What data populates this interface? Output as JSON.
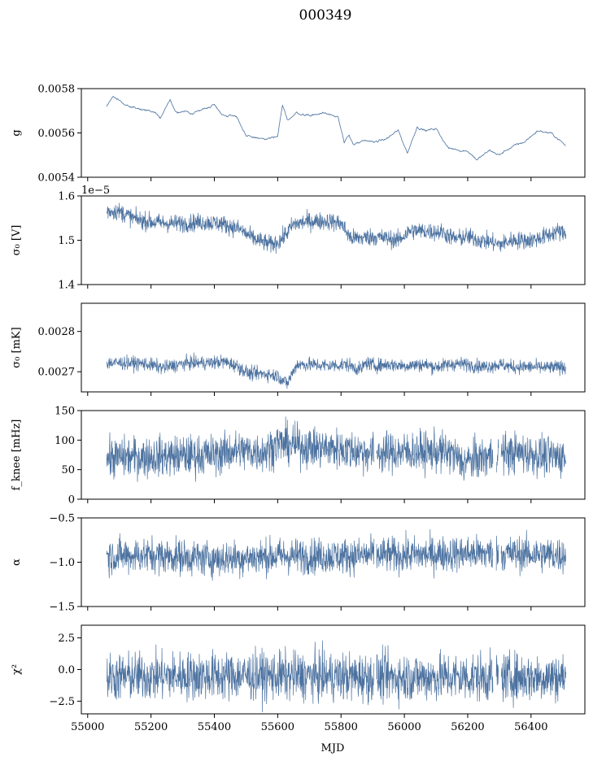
{
  "title": "000349",
  "series_color": "#4c72a0",
  "xlabel": "MJD",
  "x_ticks": [
    "55000",
    "55200",
    "55400",
    "55600",
    "55800",
    "56000",
    "56200",
    "56400"
  ],
  "chart_data": [
    {
      "type": "line",
      "name": "g",
      "ylabel": "g",
      "ylim": [
        0.0054,
        0.0058
      ],
      "y_ticks": [
        {
          "v": 0.0054,
          "label": "0.0054"
        },
        {
          "v": 0.0056,
          "label": "0.0056"
        },
        {
          "v": 0.0058,
          "label": "0.0058"
        }
      ],
      "x": [
        55060,
        55080,
        55100,
        55130,
        55160,
        55200,
        55230,
        55260,
        55280,
        55330,
        55370,
        55400,
        55430,
        55470,
        55500,
        55530,
        55560,
        55600,
        55615,
        55630,
        55660,
        55700,
        55750,
        55790,
        55810,
        55825,
        55840,
        55870,
        55900,
        55940,
        55980,
        56010,
        56040,
        56070,
        56100,
        56140,
        56200,
        56230,
        56270,
        56300,
        56330,
        56380,
        56420,
        56460,
        56490,
        56510
      ],
      "values": [
        0.00572,
        0.00577,
        0.00575,
        0.00572,
        0.00571,
        0.0057,
        0.00567,
        0.00575,
        0.00569,
        0.00569,
        0.00571,
        0.00573,
        0.00568,
        0.00568,
        0.00558,
        0.00558,
        0.00557,
        0.00558,
        0.00572,
        0.00566,
        0.00569,
        0.00568,
        0.00569,
        0.00568,
        0.00555,
        0.00559,
        0.00555,
        0.00556,
        0.00556,
        0.00557,
        0.00561,
        0.00551,
        0.00563,
        0.00561,
        0.00562,
        0.00553,
        0.00552,
        0.00548,
        0.00552,
        0.0055,
        0.00553,
        0.00556,
        0.00561,
        0.0056,
        0.00557,
        0.00554
      ],
      "noise": 2.5e-06
    },
    {
      "type": "line",
      "name": "sigma0-V",
      "ylabel": "σ₀ [V]",
      "offset_text": "1e−5",
      "ylim": [
        1.4,
        1.6
      ],
      "y_ticks": [
        {
          "v": 1.4,
          "label": "1.4"
        },
        {
          "v": 1.5,
          "label": "1.5"
        },
        {
          "v": 1.6,
          "label": "1.6"
        }
      ],
      "x": [
        55060,
        55100,
        55150,
        55200,
        55260,
        55300,
        55360,
        55420,
        55480,
        55520,
        55550,
        55580,
        55610,
        55650,
        55700,
        55760,
        55800,
        55830,
        55860,
        55900,
        55940,
        55980,
        56020,
        56070,
        56120,
        56160,
        56200,
        56240,
        56280,
        56300,
        56340,
        56400,
        56450,
        56480,
        56510
      ],
      "values": [
        1.566,
        1.565,
        1.548,
        1.541,
        1.538,
        1.538,
        1.541,
        1.538,
        1.525,
        1.505,
        1.497,
        1.49,
        1.5,
        1.536,
        1.543,
        1.543,
        1.538,
        1.505,
        1.505,
        1.508,
        1.505,
        1.5,
        1.522,
        1.52,
        1.518,
        1.503,
        1.508,
        1.5,
        1.495,
        1.49,
        1.5,
        1.5,
        1.51,
        1.52,
        1.515
      ],
      "noise": 0.01,
      "gaps": []
    },
    {
      "type": "line",
      "name": "sigma0-mK",
      "ylabel": "σ₀ [mK]",
      "ylim": [
        0.00265,
        0.00287
      ],
      "y_ticks": [
        {
          "v": 0.0027,
          "label": "0.0027"
        },
        {
          "v": 0.0028,
          "label": "0.0028"
        }
      ],
      "x": [
        55060,
        55120,
        55180,
        55240,
        55280,
        55320,
        55380,
        55430,
        55470,
        55510,
        55560,
        55600,
        55630,
        55660,
        55700,
        55760,
        55820,
        55860,
        55880,
        55910,
        55950,
        56000,
        56060,
        56100,
        56160,
        56200,
        56250,
        56300,
        56340,
        56400,
        56450,
        56510
      ],
      "values": [
        0.002722,
        0.002722,
        0.00272,
        0.00271,
        0.002717,
        0.002722,
        0.002722,
        0.002725,
        0.002715,
        0.002695,
        0.002695,
        0.00269,
        0.00267,
        0.002718,
        0.002718,
        0.002715,
        0.002718,
        0.002705,
        0.002722,
        0.002715,
        0.002718,
        0.002715,
        0.002718,
        0.002712,
        0.00272,
        0.002718,
        0.002712,
        0.002718,
        0.002712,
        0.002712,
        0.00271,
        0.002712
      ],
      "noise": 8.5e-06,
      "gaps": []
    },
    {
      "type": "line",
      "name": "f-knee",
      "ylabel": "f_knee [mHz]",
      "ylim": [
        0,
        150
      ],
      "y_ticks": [
        {
          "v": 0,
          "label": "0"
        },
        {
          "v": 50,
          "label": "50"
        },
        {
          "v": 100,
          "label": "100"
        },
        {
          "v": 150,
          "label": "150"
        }
      ],
      "x": [
        55060,
        55200,
        55400,
        55460,
        55560,
        55600,
        55700,
        55800,
        55900,
        56000,
        56100,
        56150,
        56180,
        56250,
        56300,
        56380,
        56450,
        56510
      ],
      "values": [
        70,
        72,
        75,
        82,
        80,
        95,
        88,
        85,
        78,
        80,
        80,
        78,
        62,
        70,
        78,
        78,
        72,
        72
      ],
      "noise": 17,
      "gaps": [
        [
          55905,
          55912
        ],
        [
          56280,
          56290
        ],
        [
          56298,
          56305
        ]
      ]
    },
    {
      "type": "line",
      "name": "alpha",
      "ylabel": "α",
      "ylim": [
        -1.5,
        -0.5
      ],
      "y_ticks": [
        {
          "v": -1.5,
          "label": "−1.5"
        },
        {
          "v": -1.0,
          "label": "−1.0"
        },
        {
          "v": -0.5,
          "label": "−0.5"
        }
      ],
      "x": [
        55060,
        55200,
        55400,
        55500,
        55600,
        55800,
        55900,
        56000,
        56200,
        56300,
        56510
      ],
      "values": [
        -0.93,
        -0.92,
        -0.96,
        -0.95,
        -0.93,
        -0.93,
        -0.92,
        -0.92,
        -0.9,
        -0.9,
        -0.92
      ],
      "noise": 0.1,
      "gaps": [
        [
          55905,
          55912
        ],
        [
          56280,
          56290
        ],
        [
          56298,
          56305
        ]
      ]
    },
    {
      "type": "line",
      "name": "chi-squared",
      "ylabel": "χ²",
      "ylim": [
        -3.5,
        3.5
      ],
      "y_ticks": [
        {
          "v": -2.5,
          "label": "−2.5"
        },
        {
          "v": 0.0,
          "label": "0.0"
        },
        {
          "v": 2.5,
          "label": "2.5"
        }
      ],
      "x": [
        55060,
        55300,
        55600,
        55900,
        56200,
        56510
      ],
      "values": [
        -0.6,
        -0.5,
        -0.5,
        -0.6,
        -0.6,
        -0.6
      ],
      "noise": 0.95,
      "gaps": [
        [
          55905,
          55912
        ],
        [
          56280,
          56290
        ],
        [
          56298,
          56305
        ]
      ]
    }
  ]
}
